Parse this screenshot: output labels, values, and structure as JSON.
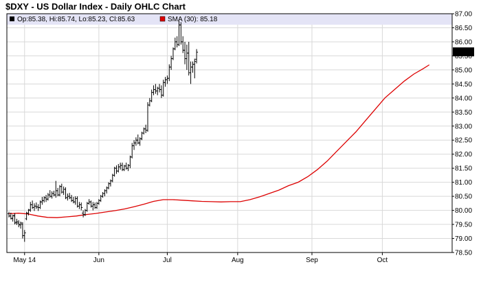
{
  "chart_data": {
    "type": "ohlc",
    "title": "$DXY - US Dollar Index - Daily OHLC Chart",
    "legend": {
      "ohlc_label": "Op:85.38, Hi:85.74, Lo:85.23, Cl:85.63",
      "sma_label": "SMA (30): 85.18",
      "placement": "top-left"
    },
    "last_price_label": "85.63",
    "x_tick_labels": [
      "May 14",
      "Jun",
      "Jul",
      "Aug",
      "Sep",
      "Oct"
    ],
    "y_tick_labels": [
      "78.50",
      "79.00",
      "79.50",
      "80.00",
      "80.50",
      "81.00",
      "81.50",
      "82.00",
      "82.50",
      "83.00",
      "83.50",
      "84.00",
      "84.50",
      "85.00",
      "85.50",
      "86.00",
      "86.50",
      "87.00"
    ],
    "ylim": [
      78.5,
      87.0
    ],
    "y_step": 0.5,
    "grid": true,
    "colors": {
      "sma_line": "#dd0000",
      "bars": "#000000",
      "grid": "#d8d8d8",
      "legend_band": "#e4e4f6",
      "price_box": "#000000",
      "ohlc_swatch": "#000000",
      "sma_swatch": "#dd0000"
    },
    "sma_points": [
      [
        0,
        79.88
      ],
      [
        5,
        79.9
      ],
      [
        10,
        79.87
      ],
      [
        15,
        79.8
      ],
      [
        20,
        79.75
      ],
      [
        25,
        79.74
      ],
      [
        30,
        79.77
      ],
      [
        35,
        79.8
      ],
      [
        40,
        79.85
      ],
      [
        45,
        79.89
      ],
      [
        50,
        79.94
      ],
      [
        55,
        79.99
      ],
      [
        60,
        80.05
      ],
      [
        65,
        80.13
      ],
      [
        70,
        80.22
      ],
      [
        75,
        80.32
      ],
      [
        80,
        80.38
      ],
      [
        85,
        80.38
      ],
      [
        90,
        80.36
      ],
      [
        95,
        80.34
      ],
      [
        100,
        80.32
      ],
      [
        105,
        80.31
      ],
      [
        110,
        80.3
      ],
      [
        115,
        80.31
      ],
      [
        120,
        80.31
      ],
      [
        125,
        80.38
      ],
      [
        130,
        80.48
      ],
      [
        135,
        80.6
      ],
      [
        140,
        80.72
      ],
      [
        145,
        80.88
      ],
      [
        150,
        81.0
      ],
      [
        155,
        81.2
      ],
      [
        160,
        81.45
      ],
      [
        165,
        81.75
      ],
      [
        170,
        82.1
      ],
      [
        175,
        82.45
      ],
      [
        180,
        82.8
      ],
      [
        185,
        83.2
      ],
      [
        190,
        83.6
      ],
      [
        195,
        84.0
      ],
      [
        200,
        84.3
      ],
      [
        205,
        84.6
      ],
      [
        210,
        84.85
      ],
      [
        215,
        85.05
      ],
      [
        218,
        85.18
      ]
    ],
    "bars": [
      [
        79.88,
        79.95,
        79.75,
        79.8
      ],
      [
        79.8,
        79.92,
        79.68,
        79.7
      ],
      [
        79.72,
        79.85,
        79.6,
        79.82
      ],
      [
        79.8,
        79.9,
        79.5,
        79.55
      ],
      [
        79.58,
        79.7,
        79.48,
        79.6
      ],
      [
        79.55,
        79.65,
        79.4,
        79.5
      ],
      [
        79.48,
        79.6,
        79.35,
        79.55
      ],
      [
        79.5,
        79.58,
        79.0,
        79.1
      ],
      [
        79.1,
        79.3,
        78.88,
        79.2
      ],
      [
        79.7,
        79.95,
        79.65,
        79.9
      ],
      [
        79.9,
        80.05,
        79.82,
        80.0
      ],
      [
        80.02,
        80.3,
        79.95,
        80.2
      ],
      [
        80.2,
        80.35,
        80.05,
        80.1
      ],
      [
        80.1,
        80.25,
        79.98,
        80.15
      ],
      [
        80.15,
        80.28,
        80.05,
        80.12
      ],
      [
        80.12,
        80.22,
        79.98,
        80.1
      ],
      [
        80.1,
        80.35,
        80.05,
        80.3
      ],
      [
        80.3,
        80.48,
        80.2,
        80.35
      ],
      [
        80.35,
        80.5,
        80.28,
        80.45
      ],
      [
        80.45,
        80.55,
        80.3,
        80.4
      ],
      [
        80.4,
        80.62,
        80.35,
        80.55
      ],
      [
        80.55,
        80.72,
        80.45,
        80.5
      ],
      [
        80.5,
        80.68,
        80.42,
        80.6
      ],
      [
        80.6,
        80.7,
        80.5,
        80.55
      ],
      [
        80.55,
        81.05,
        80.45,
        80.7
      ],
      [
        80.7,
        80.8,
        80.5,
        80.55
      ],
      [
        80.55,
        80.9,
        80.5,
        80.85
      ],
      [
        80.85,
        80.95,
        80.6,
        80.65
      ],
      [
        80.65,
        80.85,
        80.55,
        80.75
      ],
      [
        80.75,
        80.82,
        80.4,
        80.45
      ],
      [
        80.45,
        80.6,
        80.35,
        80.5
      ],
      [
        80.5,
        80.62,
        80.4,
        80.45
      ],
      [
        80.45,
        80.55,
        80.3,
        80.35
      ],
      [
        80.35,
        80.48,
        80.25,
        80.3
      ],
      [
        80.3,
        80.5,
        80.2,
        80.42
      ],
      [
        80.42,
        80.5,
        80.1,
        80.15
      ],
      [
        80.15,
        80.3,
        80.05,
        80.2
      ],
      [
        80.2,
        80.28,
        80.0,
        80.1
      ],
      [
        79.9,
        80.0,
        79.75,
        79.85
      ],
      [
        79.85,
        80.05,
        79.8,
        80.0
      ],
      [
        80.0,
        80.3,
        79.95,
        80.25
      ],
      [
        80.25,
        80.4,
        80.2,
        80.3
      ],
      [
        80.3,
        80.35,
        80.1,
        80.15
      ],
      [
        80.15,
        80.3,
        80.0,
        80.2
      ],
      [
        80.2,
        80.28,
        80.05,
        80.1
      ],
      [
        80.1,
        80.3,
        80.05,
        80.25
      ],
      [
        80.25,
        80.4,
        80.2,
        80.35
      ],
      [
        80.35,
        80.55,
        80.3,
        80.5
      ],
      [
        80.5,
        80.65,
        80.45,
        80.6
      ],
      [
        80.6,
        80.75,
        80.5,
        80.7
      ],
      [
        80.7,
        80.85,
        80.6,
        80.8
      ],
      [
        80.8,
        81.0,
        80.75,
        80.95
      ],
      [
        80.95,
        81.1,
        80.85,
        81.05
      ],
      [
        81.05,
        81.3,
        81.0,
        81.25
      ],
      [
        81.25,
        81.55,
        81.2,
        81.5
      ],
      [
        81.5,
        81.6,
        81.3,
        81.4
      ],
      [
        81.4,
        81.65,
        81.35,
        81.55
      ],
      [
        81.55,
        81.7,
        81.45,
        81.6
      ],
      [
        81.6,
        81.7,
        81.4,
        81.45
      ],
      [
        81.45,
        81.62,
        81.4,
        81.58
      ],
      [
        81.58,
        81.7,
        81.45,
        81.5
      ],
      [
        81.5,
        81.65,
        81.4,
        81.6
      ],
      [
        81.6,
        81.95,
        81.5,
        81.9
      ],
      [
        81.9,
        82.4,
        81.85,
        82.3
      ],
      [
        82.3,
        82.5,
        82.15,
        82.4
      ],
      [
        82.4,
        82.6,
        82.3,
        82.5
      ],
      [
        82.5,
        82.7,
        82.35,
        82.4
      ],
      [
        82.4,
        82.6,
        82.3,
        82.55
      ],
      [
        82.55,
        82.8,
        82.5,
        82.75
      ],
      [
        82.75,
        82.95,
        82.7,
        82.9
      ],
      [
        82.9,
        83.05,
        82.75,
        82.85
      ],
      [
        82.85,
        83.85,
        82.8,
        83.75
      ],
      [
        83.75,
        84.0,
        83.7,
        83.9
      ],
      [
        83.9,
        84.3,
        83.85,
        84.2
      ],
      [
        84.2,
        84.45,
        84.1,
        84.3
      ],
      [
        84.3,
        84.5,
        84.15,
        84.25
      ],
      [
        84.25,
        84.4,
        84.1,
        84.35
      ],
      [
        84.35,
        84.5,
        84.2,
        84.3
      ],
      [
        84.3,
        84.45,
        84.0,
        84.1
      ],
      [
        84.1,
        84.65,
        84.05,
        84.55
      ],
      [
        84.55,
        84.75,
        84.4,
        84.65
      ],
      [
        84.65,
        84.8,
        84.5,
        84.7
      ],
      [
        84.7,
        85.2,
        84.6,
        85.1
      ],
      [
        85.1,
        85.5,
        85.0,
        85.4
      ],
      [
        85.4,
        85.8,
        85.35,
        85.75
      ],
      [
        85.75,
        86.15,
        85.7,
        86.0
      ],
      [
        86.0,
        86.2,
        85.8,
        85.9
      ],
      [
        85.9,
        86.75,
        85.85,
        86.6
      ],
      [
        86.6,
        86.7,
        85.9,
        86.0
      ],
      [
        86.0,
        86.2,
        85.6,
        85.7
      ],
      [
        85.7,
        86.0,
        85.2,
        85.4
      ],
      [
        85.4,
        85.9,
        85.0,
        85.6
      ],
      [
        85.6,
        86.0,
        84.8,
        84.9
      ],
      [
        84.9,
        85.3,
        84.5,
        85.1
      ],
      [
        85.1,
        85.3,
        84.9,
        85.2
      ],
      [
        85.2,
        85.4,
        84.7,
        85.3
      ],
      [
        85.38,
        85.74,
        85.23,
        85.63
      ]
    ]
  }
}
